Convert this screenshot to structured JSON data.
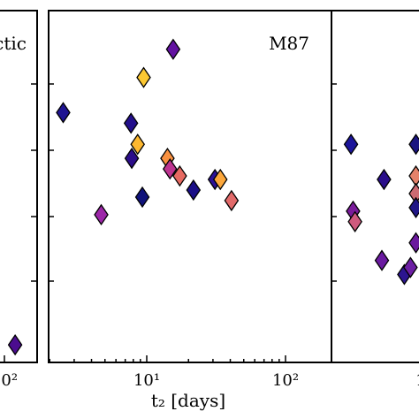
{
  "chart_data": [
    {
      "type": "scatter",
      "panel": "left",
      "title": "ctic",
      "xscale": "log",
      "xlabel": "",
      "tick_labels": [
        "10²"
      ],
      "points": [
        {
          "x": 120,
          "y": 0.05,
          "color": "#4b0c8f"
        }
      ]
    },
    {
      "type": "scatter",
      "panel": "middle",
      "title": "M87",
      "xscale": "log",
      "xlim": [
        2,
        200
      ],
      "ylim": [
        0,
        1
      ],
      "xlabel": "t₂ [days]",
      "tick_labels": [
        "10¹",
        "10²"
      ],
      "points": [
        {
          "x": 2.5,
          "y": 0.71,
          "color": "#1f1491"
        },
        {
          "x": 4.7,
          "y": 0.42,
          "color": "#9c26a8"
        },
        {
          "x": 7.7,
          "y": 0.68,
          "color": "#230f8c"
        },
        {
          "x": 7.8,
          "y": 0.58,
          "color": "#2c0d8a"
        },
        {
          "x": 8.6,
          "y": 0.62,
          "color": "#fdb830"
        },
        {
          "x": 9.3,
          "y": 0.47,
          "color": "#10127a"
        },
        {
          "x": 9.5,
          "y": 0.81,
          "color": "#fcc832"
        },
        {
          "x": 14.1,
          "y": 0.58,
          "color": "#f99140"
        },
        {
          "x": 14.7,
          "y": 0.55,
          "color": "#bd3490"
        },
        {
          "x": 15.5,
          "y": 0.89,
          "color": "#6212a0"
        },
        {
          "x": 17.3,
          "y": 0.53,
          "color": "#e76a62"
        },
        {
          "x": 21.7,
          "y": 0.49,
          "color": "#1a0e86"
        },
        {
          "x": 31.0,
          "y": 0.52,
          "color": "#2c1297"
        },
        {
          "x": 33.9,
          "y": 0.52,
          "color": "#fca73b"
        },
        {
          "x": 40.8,
          "y": 0.46,
          "color": "#e26a6a"
        }
      ]
    },
    {
      "type": "scatter",
      "panel": "right",
      "title": "",
      "xscale": "log",
      "xlabel": "",
      "tick_labels": [
        "1"
      ],
      "points": [
        {
          "x": 0.1,
          "y": 0.62,
          "color": "#19139a"
        },
        {
          "x": 0.22,
          "y": 0.62,
          "color": "#1b149a"
        },
        {
          "x": 0.23,
          "y": 0.43,
          "color": "#7a1b9a"
        },
        {
          "x": 0.24,
          "y": 0.4,
          "color": "#cf5a7e"
        },
        {
          "x": 0.45,
          "y": 0.52,
          "color": "#2a0e8a"
        },
        {
          "x": 0.43,
          "y": 0.29,
          "color": "#6a1aa0"
        },
        {
          "x": 0.7,
          "y": 0.25,
          "color": "#2c1590"
        },
        {
          "x": 0.8,
          "y": 0.27,
          "color": "#6c1ea4"
        },
        {
          "x": 0.9,
          "y": 0.62,
          "color": "#1a1580"
        },
        {
          "x": 0.9,
          "y": 0.53,
          "color": "#e4826a"
        },
        {
          "x": 0.9,
          "y": 0.48,
          "color": "#cc6a72"
        },
        {
          "x": 0.9,
          "y": 0.44,
          "color": "#1f1585"
        },
        {
          "x": 0.9,
          "y": 0.34,
          "color": "#6b1a9e"
        }
      ]
    }
  ]
}
